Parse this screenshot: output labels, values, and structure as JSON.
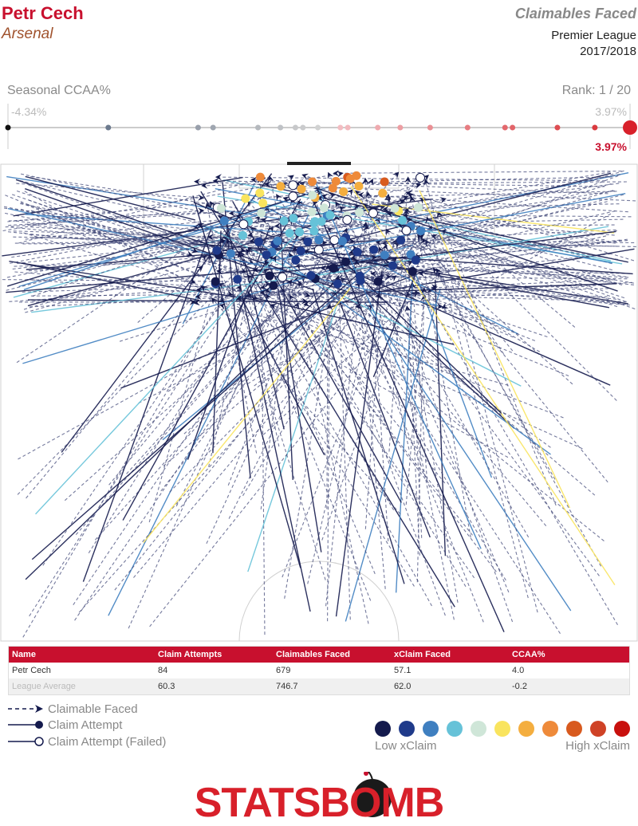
{
  "header": {
    "player": "Petr Cech",
    "team": "Arsenal",
    "title": "Claimables Faced",
    "league": "Premier League",
    "season": "2017/2018"
  },
  "ccaa_scale": {
    "label": "Seasonal CCAA%",
    "rank": "Rank: 1 / 20",
    "min_label": "-4.34%",
    "max_label": "3.97%",
    "player_label": "3.97%",
    "min": -4.34,
    "max": 3.97,
    "player_value": 3.97,
    "team_values": [
      -4.34,
      -3.0,
      -1.8,
      -1.6,
      -1.0,
      -0.7,
      -0.5,
      -0.4,
      -0.2,
      0.1,
      0.2,
      0.6,
      0.9,
      1.3,
      1.8,
      2.3,
      2.4,
      3.0,
      3.5,
      3.97
    ]
  },
  "colors": {
    "brand_red": "#c8102e",
    "scale": [
      "#141a4d",
      "#1f3a8a",
      "#3f7fc0",
      "#66c2d8",
      "#cfe6d8",
      "#f9e45e",
      "#f4ae3f",
      "#ee8a3a",
      "#d85a1e",
      "#cf4226",
      "#c8100d"
    ]
  },
  "chart_data": {
    "type": "scatter",
    "title": "Claimables Faced",
    "table": {
      "columns": [
        "Name",
        "Claim Attempts",
        "Claimables Faced",
        "xClaim Faced",
        "CCAA%"
      ],
      "rows": [
        [
          "Petr Cech",
          "84",
          "679",
          "57.1",
          "4.0"
        ],
        [
          "League Average",
          "60.3",
          "746.7",
          "62.0",
          "-0.2"
        ]
      ]
    }
  },
  "legend": {
    "items": [
      "Claimable Faced",
      "Claim Attempt",
      "Claim Attempt (Failed)"
    ],
    "low": "Low xClaim",
    "high": "High xClaim"
  },
  "logo": {
    "text": "STATSBOMB"
  }
}
